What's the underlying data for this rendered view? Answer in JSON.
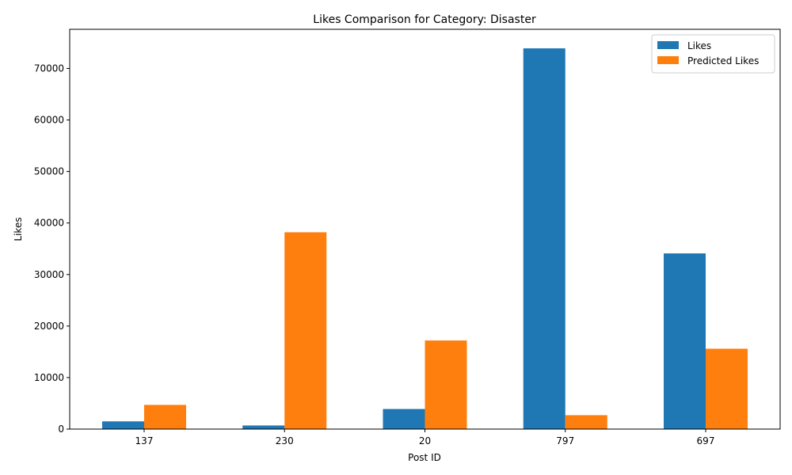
{
  "chart_data": {
    "type": "bar",
    "title": "Likes Comparison for Category: Disaster",
    "xlabel": "Post ID",
    "ylabel": "Likes",
    "categories": [
      "137",
      "230",
      "20",
      "797",
      "697"
    ],
    "series": [
      {
        "name": "Likes",
        "values": [
          1500,
          700,
          3900,
          73900,
          34100
        ],
        "color": "#1f77b4"
      },
      {
        "name": "Predicted Likes",
        "values": [
          4700,
          38200,
          17200,
          2700,
          15600
        ],
        "color": "#ff7f0e"
      }
    ],
    "ylim": [
      0,
      77600
    ],
    "yticks": [
      0,
      10000,
      20000,
      30000,
      40000,
      50000,
      60000,
      70000
    ],
    "grid": false,
    "legend_position": "top-right"
  }
}
